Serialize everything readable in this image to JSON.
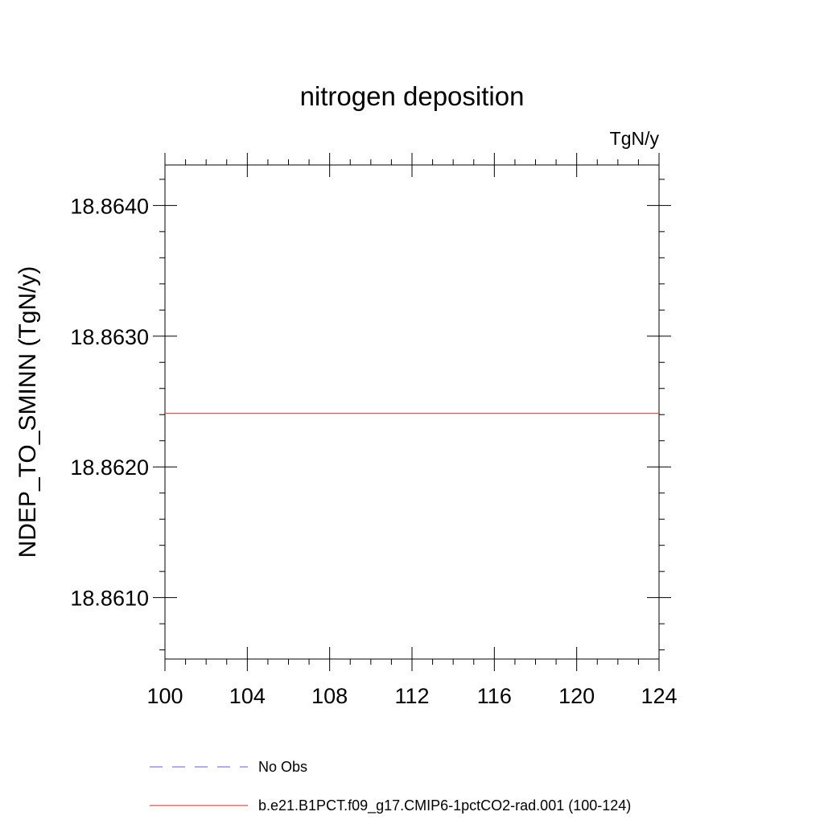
{
  "chart_data": {
    "type": "line",
    "title": "nitrogen deposition",
    "units_label": "TgN/y",
    "ylabel": "NDEP_TO_SMINN  (TgN/y)",
    "xlabel": "",
    "xlim": [
      100,
      124
    ],
    "ylim": [
      18.86053,
      18.86431
    ],
    "x_ticks": [
      100,
      104,
      108,
      112,
      116,
      120,
      124
    ],
    "x_tick_labels": [
      "100",
      "104",
      "108",
      "112",
      "116",
      "120",
      "124"
    ],
    "y_ticks": [
      18.861,
      18.862,
      18.863,
      18.864
    ],
    "y_tick_labels": [
      "18.8610",
      "18.8620",
      "18.8630",
      "18.8640"
    ],
    "grid": false,
    "series": [
      {
        "name": "No Obs",
        "color": "#8080c0",
        "dash": "dashed",
        "x": [],
        "values": []
      },
      {
        "name": "b.e21.B1PCT.f09_g17.CMIP6-1pctCO2-rad.001 (100-124)",
        "color": "#ff4040",
        "dash": "solid",
        "x": [
          100,
          124
        ],
        "values": [
          18.86241,
          18.86241
        ]
      }
    ],
    "legend_position": "bottom-left"
  }
}
